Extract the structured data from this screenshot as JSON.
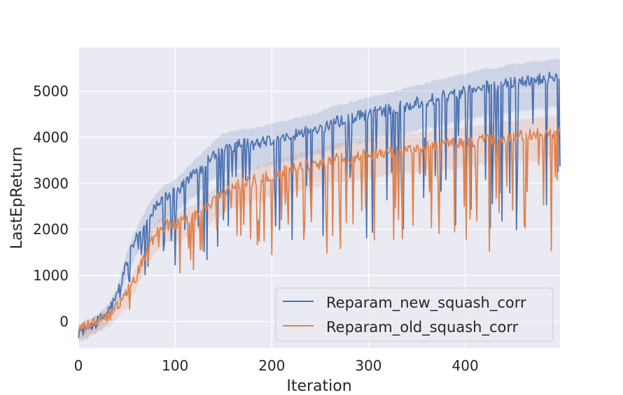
{
  "chart_data": {
    "type": "line",
    "title": "",
    "xlabel": "Iteration",
    "ylabel": "LastEpReturn",
    "xlim": [
      0,
      498
    ],
    "ylim": [
      -580,
      5950
    ],
    "x_ticks": [
      0,
      100,
      200,
      300,
      400
    ],
    "y_ticks": [
      0,
      1000,
      2000,
      3000,
      4000,
      5000
    ],
    "x_tick_labels": [
      "0",
      "100",
      "200",
      "300",
      "400"
    ],
    "y_tick_labels": [
      "0",
      "1000",
      "2000",
      "3000",
      "4000",
      "5000"
    ],
    "grid": true,
    "legend_position": "lower-right",
    "background": "#eaeaf2",
    "series": [
      {
        "name": "Reparam_new_squash_corr",
        "color": "#4c72b0",
        "x": [
          0,
          10,
          20,
          30,
          40,
          50,
          60,
          70,
          80,
          90,
          100,
          110,
          120,
          130,
          140,
          150,
          160,
          170,
          180,
          190,
          200,
          210,
          220,
          230,
          240,
          250,
          260,
          270,
          280,
          290,
          300,
          310,
          320,
          330,
          340,
          350,
          360,
          370,
          380,
          390,
          400,
          410,
          420,
          430,
          440,
          450,
          460,
          470,
          480,
          490,
          498
        ],
        "y": [
          -230,
          -120,
          0,
          200,
          550,
          1300,
          1800,
          2200,
          2500,
          2700,
          2800,
          3000,
          3200,
          3400,
          3600,
          3750,
          3800,
          3850,
          3850,
          3900,
          3950,
          4000,
          4050,
          4100,
          4150,
          4200,
          4300,
          4350,
          4400,
          4450,
          4500,
          4550,
          4600,
          4650,
          4700,
          4750,
          4800,
          4850,
          4900,
          4950,
          5000,
          5050,
          5100,
          5100,
          5150,
          5200,
          5200,
          5250,
          5250,
          5300,
          5300
        ]
      },
      {
        "name": "Reparam_old_squash_corr",
        "color": "#dd8452",
        "x": [
          0,
          10,
          20,
          30,
          40,
          50,
          60,
          70,
          80,
          90,
          100,
          110,
          120,
          130,
          140,
          150,
          160,
          170,
          180,
          190,
          200,
          210,
          220,
          230,
          240,
          250,
          260,
          270,
          280,
          290,
          300,
          310,
          320,
          330,
          340,
          350,
          360,
          370,
          380,
          390,
          400,
          410,
          420,
          430,
          440,
          450,
          460,
          470,
          480,
          490,
          498
        ],
        "y": [
          -180,
          -100,
          0,
          100,
          300,
          600,
          1000,
          1500,
          1900,
          2100,
          2100,
          2200,
          2300,
          2450,
          2600,
          2800,
          2900,
          3000,
          3050,
          3100,
          3200,
          3250,
          3300,
          3350,
          3400,
          3450,
          3500,
          3550,
          3550,
          3600,
          3650,
          3650,
          3700,
          3700,
          3750,
          3750,
          3800,
          3800,
          3850,
          3850,
          3900,
          3900,
          3950,
          3950,
          4000,
          4000,
          4050,
          4050,
          4100,
          4100,
          4150
        ]
      }
    ]
  }
}
